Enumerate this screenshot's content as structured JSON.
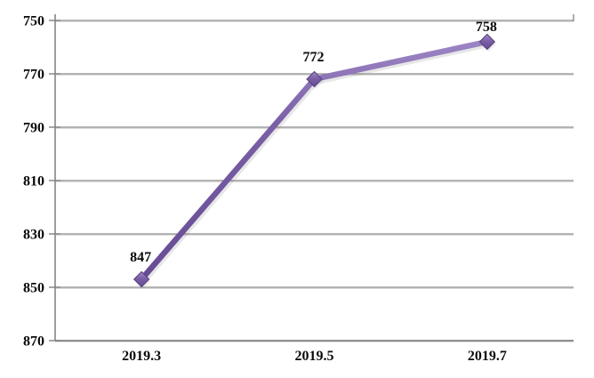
{
  "chart_data": {
    "type": "line",
    "title": "",
    "xlabel": "",
    "ylabel": "",
    "categories": [
      "2019.3",
      "2019.5",
      "2019.7"
    ],
    "series": [
      {
        "name": "series-1",
        "values": [
          847,
          772,
          758
        ]
      }
    ],
    "data_labels": [
      "847",
      "772",
      "758"
    ],
    "y_axis": {
      "min": 750,
      "max": 870,
      "step": 20,
      "inverted": true,
      "ticks": [
        "750",
        "770",
        "790",
        "810",
        "830",
        "850",
        "870"
      ]
    },
    "grid": true,
    "legend": "none",
    "colors": {
      "line": "#7A5FA6",
      "line_highlight": "#9C85C4",
      "marker_light": "#A58BCB",
      "marker_dark": "#674C94",
      "marker_border": "#55407A",
      "grid": "#8C8C8C",
      "grid_shadow": "#DCDCDC",
      "axis": "#7F7F7F",
      "text": "#0A0A0A",
      "background": "#FFFFFF",
      "shadow": "rgba(100,100,100,0.35)"
    }
  }
}
